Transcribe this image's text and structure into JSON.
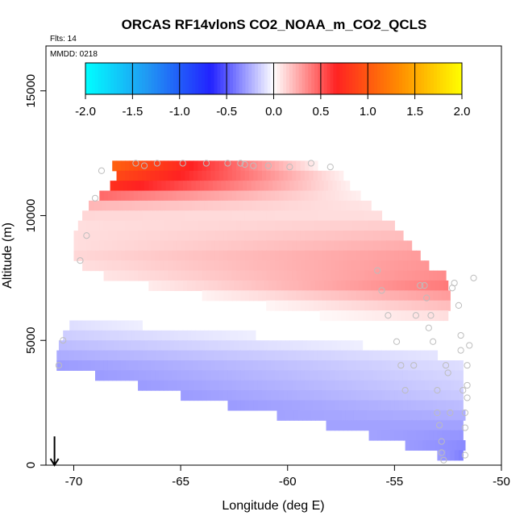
{
  "chart_data": {
    "type": "heatmap",
    "title": "ORCAS RF14vlonS CO2_NOAA_m_CO2_QCLS",
    "flights_label": "Flts: 14",
    "date_label": "MMDD: 0218",
    "xlabel": "Longitude (deg E)",
    "ylabel": "Altitude (m)",
    "xlim": [
      -71.3,
      -50.0
    ],
    "ylim": [
      0,
      16800
    ],
    "x_ticks": [
      -70,
      -65,
      -60,
      -55,
      -50
    ],
    "x_tick_labels": [
      "-70",
      "-65",
      "-60",
      "-55",
      "-50"
    ],
    "y_ticks": [
      0,
      5000,
      10000,
      15000
    ],
    "y_tick_labels": [
      "0",
      "5000",
      "10000",
      "15000"
    ],
    "colorbar": {
      "min": -2.0,
      "max": 2.0,
      "ticks": [
        -2.0,
        -1.5,
        -1.0,
        -0.5,
        0.0,
        0.5,
        1.0,
        1.5,
        2.0
      ],
      "tick_labels": [
        "-2.0",
        "-1.5",
        "-1.0",
        "-0.5",
        "0.0",
        "0.5",
        "1.0",
        "1.5",
        "2.0"
      ],
      "colors": [
        "#00ffff",
        "#2196f3",
        "#2222ff",
        "#ffffff",
        "#ff2222",
        "#ff8c00",
        "#ffff00"
      ]
    },
    "arrow": {
      "x": -70.9,
      "y_from": 700,
      "y_to": 0
    },
    "upper_band": {
      "description": "positive CO2 difference aloft",
      "rows": [
        {
          "alt": 12000,
          "x0": -68.2,
          "x1": -58.7,
          "v_left": 1.05,
          "v_right": 0.05
        },
        {
          "alt": 11600,
          "x0": -68.0,
          "x1": -57.5,
          "v_left": 0.9,
          "v_right": 0.05
        },
        {
          "alt": 11200,
          "x0": -68.3,
          "x1": -57.0,
          "v_left": 0.75,
          "v_right": 0.05
        },
        {
          "alt": 10800,
          "x0": -68.8,
          "x1": -56.5,
          "v_left": 0.45,
          "v_right": 0.05
        },
        {
          "alt": 10400,
          "x0": -69.3,
          "x1": -56.0,
          "v_left": 0.22,
          "v_right": 0.08
        },
        {
          "alt": 10000,
          "x0": -69.6,
          "x1": -55.5,
          "v_left": 0.12,
          "v_right": 0.1
        },
        {
          "alt": 9600,
          "x0": -69.8,
          "x1": -55.0,
          "v_left": 0.1,
          "v_right": 0.15
        },
        {
          "alt": 9200,
          "x0": -70.0,
          "x1": -54.6,
          "v_left": 0.1,
          "v_right": 0.2
        },
        {
          "alt": 8800,
          "x0": -70.0,
          "x1": -54.2,
          "v_left": 0.1,
          "v_right": 0.25
        },
        {
          "alt": 8400,
          "x0": -70.0,
          "x1": -53.8,
          "v_left": 0.12,
          "v_right": 0.3
        },
        {
          "alt": 8000,
          "x0": -69.6,
          "x1": -53.4,
          "v_left": 0.1,
          "v_right": 0.32
        },
        {
          "alt": 7600,
          "x0": -68.6,
          "x1": -52.5,
          "v_left": 0.08,
          "v_right": 0.35
        },
        {
          "alt": 7200,
          "x0": -66.5,
          "x1": -52.5,
          "v_left": 0.06,
          "v_right": 0.4
        },
        {
          "alt": 6800,
          "x0": -64.0,
          "x1": -52.5,
          "v_left": 0.04,
          "v_right": 0.3
        },
        {
          "alt": 6400,
          "x0": -61.0,
          "x1": -52.5,
          "v_left": 0.03,
          "v_right": 0.2
        },
        {
          "alt": 6000,
          "x0": -58.5,
          "x1": -52.5,
          "v_left": 0.02,
          "v_right": 0.1
        }
      ]
    },
    "lower_band": {
      "description": "negative CO2 difference in the lower troposphere",
      "rows": [
        {
          "alt": 5600,
          "x0": -70.2,
          "x1": -66.8,
          "v_left": -0.1,
          "v_right": -0.05
        },
        {
          "alt": 5200,
          "x0": -70.5,
          "x1": -61.5,
          "v_left": -0.15,
          "v_right": -0.05
        },
        {
          "alt": 4800,
          "x0": -70.7,
          "x1": -56.5,
          "v_left": -0.2,
          "v_right": -0.05
        },
        {
          "alt": 4400,
          "x0": -70.8,
          "x1": -53.0,
          "v_left": -0.25,
          "v_right": -0.08
        },
        {
          "alt": 4000,
          "x0": -70.8,
          "x1": -51.8,
          "v_left": -0.3,
          "v_right": -0.1
        },
        {
          "alt": 3600,
          "x0": -69.0,
          "x1": -51.8,
          "v_left": -0.3,
          "v_right": -0.12
        },
        {
          "alt": 3200,
          "x0": -67.0,
          "x1": -51.8,
          "v_left": -0.3,
          "v_right": -0.14
        },
        {
          "alt": 2800,
          "x0": -65.0,
          "x1": -51.8,
          "v_left": -0.3,
          "v_right": -0.16
        },
        {
          "alt": 2400,
          "x0": -62.8,
          "x1": -51.8,
          "v_left": -0.3,
          "v_right": -0.2
        },
        {
          "alt": 2000,
          "x0": -60.5,
          "x1": -51.8,
          "v_left": -0.28,
          "v_right": -0.24
        },
        {
          "alt": 1600,
          "x0": -58.2,
          "x1": -51.8,
          "v_left": -0.28,
          "v_right": -0.28
        },
        {
          "alt": 1200,
          "x0": -56.2,
          "x1": -51.8,
          "v_left": -0.28,
          "v_right": -0.32
        },
        {
          "alt": 800,
          "x0": -54.5,
          "x1": -51.8,
          "v_left": -0.3,
          "v_right": -0.35
        },
        {
          "alt": 400,
          "x0": -53.0,
          "x1": -51.8,
          "v_left": -0.3,
          "v_right": -0.38
        }
      ]
    },
    "observations": [
      [
        -70.7,
        4000
      ],
      [
        -70.5,
        5000
      ],
      [
        -69.7,
        8200
      ],
      [
        -69.4,
        9200
      ],
      [
        -69.0,
        10700
      ],
      [
        -68.7,
        11800
      ],
      [
        -67.1,
        12100
      ],
      [
        -66.7,
        12000
      ],
      [
        -66.1,
        12100
      ],
      [
        -64.9,
        12100
      ],
      [
        -63.8,
        12100
      ],
      [
        -62.8,
        12100
      ],
      [
        -62.2,
        12100
      ],
      [
        -62.0,
        12050
      ],
      [
        -61.6,
        12000
      ],
      [
        -60.9,
        12000
      ],
      [
        -59.9,
        11950
      ],
      [
        -58.9,
        12100
      ],
      [
        -58.0,
        11950
      ],
      [
        -55.8,
        7800
      ],
      [
        -55.6,
        7000
      ],
      [
        -55.3,
        6000
      ],
      [
        -54.9,
        4950
      ],
      [
        -54.7,
        4000
      ],
      [
        -54.5,
        3000
      ],
      [
        -54.1,
        4000
      ],
      [
        -54.0,
        6000
      ],
      [
        -53.8,
        7200
      ],
      [
        -53.6,
        7200
      ],
      [
        -53.5,
        6700
      ],
      [
        -53.4,
        5500
      ],
      [
        -53.3,
        6000
      ],
      [
        -53.2,
        4950
      ],
      [
        -53.0,
        3000
      ],
      [
        -53.0,
        2100
      ],
      [
        -52.9,
        1600
      ],
      [
        -52.8,
        950
      ],
      [
        -52.8,
        500
      ],
      [
        -52.7,
        200
      ],
      [
        -52.6,
        4000
      ],
      [
        -52.5,
        3700
      ],
      [
        -52.4,
        2100
      ],
      [
        -52.3,
        7100
      ],
      [
        -52.2,
        7300
      ],
      [
        -52.0,
        6400
      ],
      [
        -51.9,
        5200
      ],
      [
        -51.9,
        4600
      ],
      [
        -51.8,
        3000
      ],
      [
        -51.7,
        2100
      ],
      [
        -51.7,
        1500
      ],
      [
        -51.7,
        400
      ],
      [
        -51.6,
        3200
      ],
      [
        -51.6,
        2700
      ],
      [
        -51.6,
        4000
      ],
      [
        -51.5,
        4800
      ],
      [
        -51.3,
        7500
      ]
    ]
  }
}
